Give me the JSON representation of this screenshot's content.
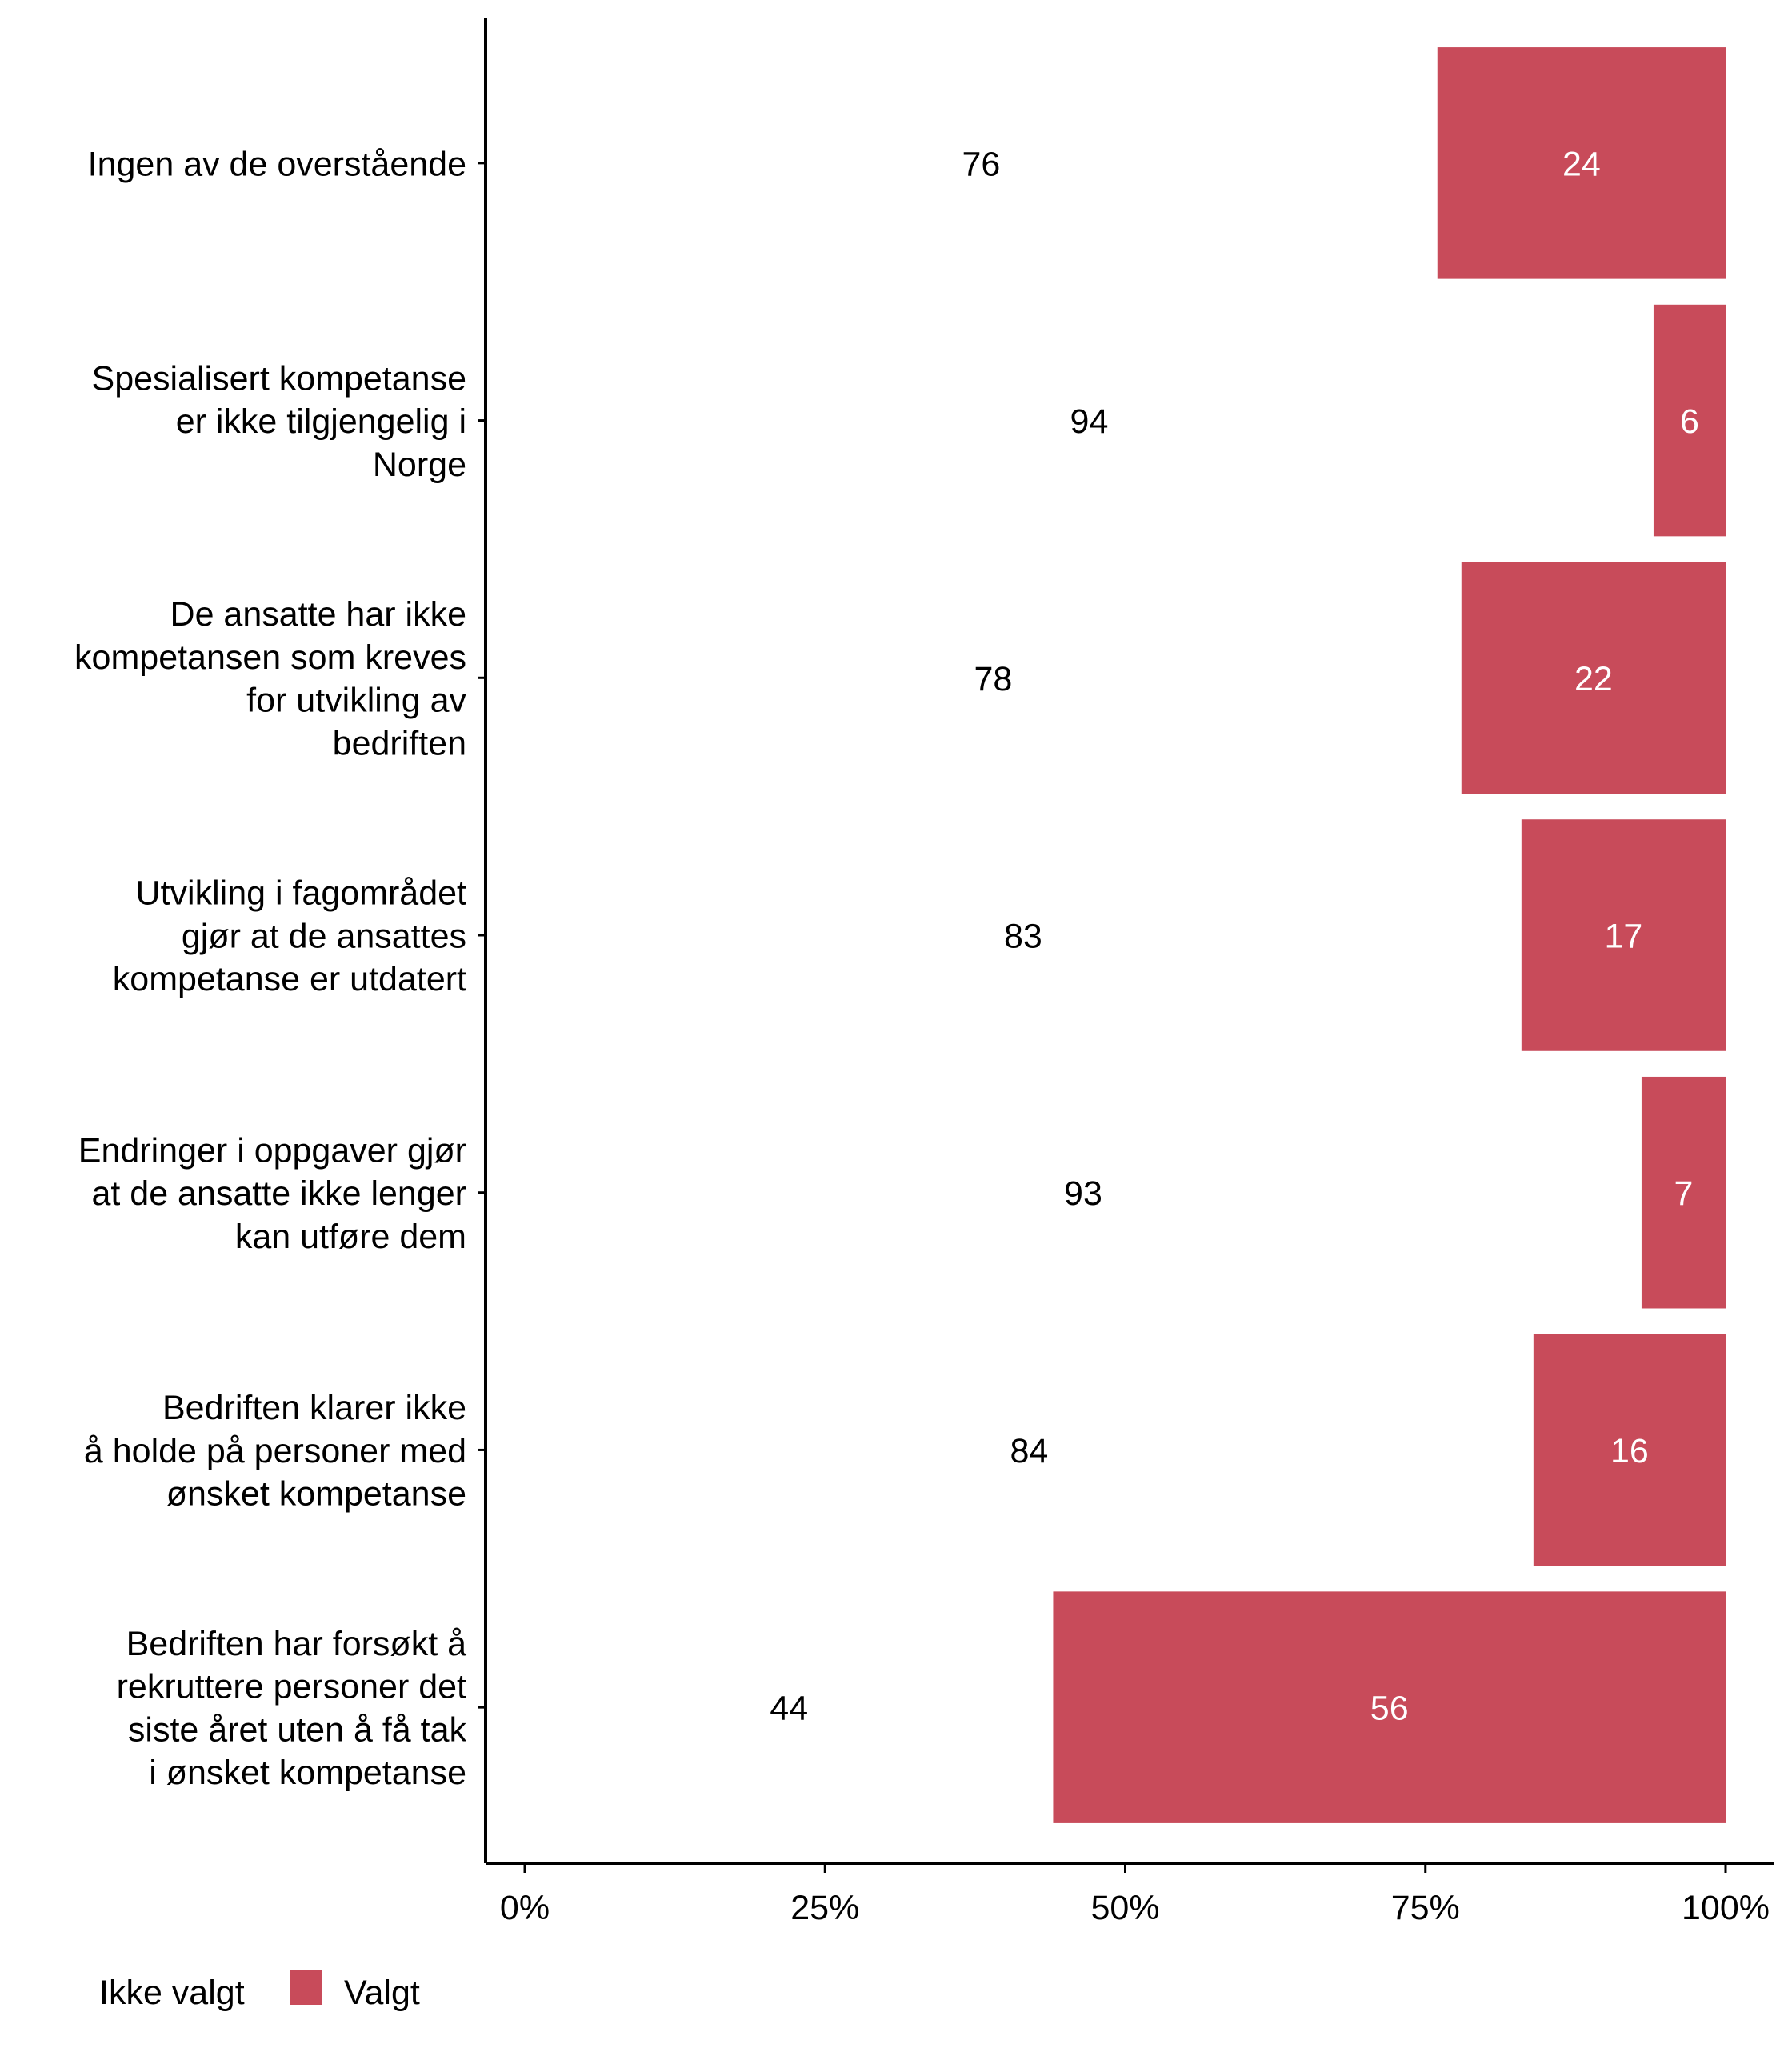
{
  "chart_data": {
    "type": "bar",
    "orientation": "horizontal",
    "stacked": true,
    "normalized": true,
    "title": "",
    "xlabel": "",
    "ylabel": "",
    "xlim": [
      0,
      100
    ],
    "x_ticks": [
      "0%",
      "25%",
      "50%",
      "75%",
      "100%"
    ],
    "x_tick_values": [
      0,
      25,
      50,
      75,
      100
    ],
    "grid": false,
    "legend_position": "bottom-left",
    "categories": [
      [
        "Ingen av de overstående"
      ],
      [
        "Spesialisert kompetanse",
        "er ikke tilgjengelig i",
        "Norge"
      ],
      [
        "De ansatte har ikke",
        "kompetansen som kreves",
        "for utvikling av",
        "bedriften"
      ],
      [
        "Utvikling i fagområdet",
        "gjør at de ansattes",
        "kompetanse er utdatert"
      ],
      [
        "Endringer i oppgaver gjør",
        "at de ansatte ikke lenger",
        "kan utføre dem"
      ],
      [
        "Bedriften klarer ikke",
        "å holde på personer med",
        "ønsket kompetanse"
      ],
      [
        "Bedriften har forsøkt å",
        "rekruttere personer det",
        "siste året uten å få tak",
        "i ønsket kompetanse"
      ]
    ],
    "series": [
      {
        "name": "Ikke valgt",
        "color": "#FFFFFF",
        "values": [
          76,
          94,
          78,
          83,
          93,
          84,
          44
        ]
      },
      {
        "name": "Valgt",
        "color": "#C84B5A",
        "values": [
          24,
          6,
          22,
          17,
          7,
          16,
          56
        ]
      }
    ]
  }
}
